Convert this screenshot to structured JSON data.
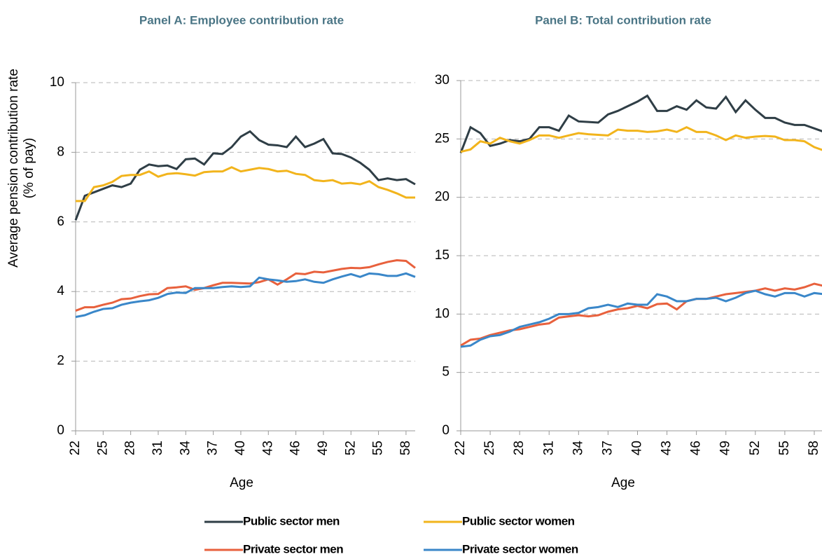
{
  "chart_data": [
    {
      "type": "line",
      "title": "Panel A: Employee contribution rate",
      "ylabel": [
        "Average pension contribution rate",
        "(% of pay)"
      ],
      "xlabel": "Age",
      "x": [
        22,
        23,
        24,
        25,
        26,
        27,
        28,
        29,
        30,
        31,
        32,
        33,
        34,
        35,
        36,
        37,
        38,
        39,
        40,
        41,
        42,
        43,
        44,
        45,
        46,
        47,
        48,
        49,
        50,
        51,
        52,
        53,
        54,
        55,
        56,
        57,
        58,
        59
      ],
      "xlim": [
        22,
        59
      ],
      "xticks": [
        22,
        25,
        28,
        31,
        34,
        37,
        40,
        43,
        46,
        49,
        52,
        55,
        58
      ],
      "ylim": [
        0,
        10
      ],
      "yticks": [
        0,
        2,
        4,
        6,
        8,
        10
      ],
      "grid": true,
      "series": [
        {
          "name": "Public sector men",
          "color": "#2f3e46",
          "values": [
            6.05,
            6.75,
            6.85,
            6.95,
            7.05,
            7.0,
            7.1,
            7.5,
            7.65,
            7.6,
            7.62,
            7.52,
            7.8,
            7.82,
            7.65,
            7.97,
            7.95,
            8.15,
            8.45,
            8.6,
            8.35,
            8.22,
            8.2,
            8.15,
            8.45,
            8.15,
            8.25,
            8.38,
            7.97,
            7.95,
            7.85,
            7.7,
            7.5,
            7.2,
            7.25,
            7.2,
            7.23,
            7.08
          ]
        },
        {
          "name": "Public sector women",
          "color": "#f2b41c",
          "values": [
            6.6,
            6.6,
            7.0,
            7.05,
            7.15,
            7.32,
            7.35,
            7.35,
            7.45,
            7.3,
            7.38,
            7.4,
            7.37,
            7.33,
            7.43,
            7.45,
            7.45,
            7.57,
            7.45,
            7.5,
            7.55,
            7.52,
            7.45,
            7.47,
            7.38,
            7.35,
            7.2,
            7.17,
            7.2,
            7.1,
            7.12,
            7.08,
            7.17,
            7.0,
            6.92,
            6.82,
            6.7,
            6.7
          ]
        },
        {
          "name": "Private sector men",
          "color": "#e8613d",
          "values": [
            3.45,
            3.55,
            3.55,
            3.62,
            3.68,
            3.78,
            3.8,
            3.87,
            3.92,
            3.93,
            4.1,
            4.12,
            4.15,
            4.05,
            4.1,
            4.18,
            4.25,
            4.25,
            4.24,
            4.23,
            4.27,
            4.35,
            4.2,
            4.35,
            4.52,
            4.5,
            4.57,
            4.55,
            4.6,
            4.65,
            4.68,
            4.67,
            4.7,
            4.78,
            4.85,
            4.9,
            4.88,
            4.68
          ]
        },
        {
          "name": "Private sector women",
          "color": "#3a87c9",
          "values": [
            3.27,
            3.32,
            3.42,
            3.5,
            3.52,
            3.62,
            3.68,
            3.72,
            3.75,
            3.82,
            3.93,
            3.97,
            3.96,
            4.1,
            4.1,
            4.1,
            4.13,
            4.15,
            4.13,
            4.15,
            4.4,
            4.35,
            4.32,
            4.28,
            4.3,
            4.35,
            4.28,
            4.25,
            4.35,
            4.43,
            4.5,
            4.42,
            4.52,
            4.5,
            4.45,
            4.45,
            4.52,
            4.42
          ]
        }
      ]
    },
    {
      "type": "line",
      "title": "Panel B: Total contribution rate",
      "xlabel": "Age",
      "x": [
        22,
        23,
        24,
        25,
        26,
        27,
        28,
        29,
        30,
        31,
        32,
        33,
        34,
        35,
        36,
        37,
        38,
        39,
        40,
        41,
        42,
        43,
        44,
        45,
        46,
        47,
        48,
        49,
        50,
        51,
        52,
        53,
        54,
        55,
        56,
        57,
        58,
        59
      ],
      "xlim": [
        22,
        59
      ],
      "xticks": [
        22,
        25,
        28,
        31,
        34,
        37,
        40,
        43,
        46,
        49,
        52,
        55,
        58
      ],
      "ylim": [
        0,
        30
      ],
      "yticks": [
        0,
        5,
        10,
        15,
        20,
        25,
        30
      ],
      "grid": true,
      "series": [
        {
          "name": "Public sector men",
          "color": "#2f3e46",
          "values": [
            23.8,
            26.0,
            25.5,
            24.4,
            24.6,
            24.9,
            24.8,
            25.0,
            26.0,
            26.0,
            25.7,
            27.0,
            26.5,
            26.45,
            26.4,
            27.1,
            27.4,
            27.8,
            28.2,
            28.7,
            27.4,
            27.4,
            27.8,
            27.5,
            28.3,
            27.7,
            27.6,
            28.6,
            27.3,
            28.3,
            27.5,
            26.8,
            26.8,
            26.4,
            26.2,
            26.2,
            25.9,
            25.6
          ]
        },
        {
          "name": "Public sector women",
          "color": "#f2b41c",
          "values": [
            23.9,
            24.1,
            24.8,
            24.6,
            25.1,
            24.8,
            24.6,
            24.9,
            25.3,
            25.3,
            25.1,
            25.3,
            25.5,
            25.4,
            25.35,
            25.3,
            25.8,
            25.7,
            25.7,
            25.6,
            25.65,
            25.8,
            25.6,
            26.0,
            25.6,
            25.6,
            25.3,
            24.9,
            25.3,
            25.1,
            25.2,
            25.25,
            25.2,
            24.9,
            24.9,
            24.8,
            24.3,
            24.0
          ]
        },
        {
          "name": "Private sector men",
          "color": "#e8613d",
          "values": [
            7.3,
            7.8,
            7.9,
            8.2,
            8.4,
            8.6,
            8.7,
            8.9,
            9.1,
            9.2,
            9.7,
            9.8,
            9.9,
            9.8,
            9.9,
            10.2,
            10.4,
            10.5,
            10.7,
            10.5,
            10.85,
            10.9,
            10.4,
            11.1,
            11.3,
            11.3,
            11.5,
            11.7,
            11.8,
            11.9,
            12.0,
            12.2,
            12.0,
            12.2,
            12.1,
            12.3,
            12.6,
            12.4
          ]
        },
        {
          "name": "Private sector women",
          "color": "#3a87c9",
          "values": [
            7.2,
            7.3,
            7.8,
            8.1,
            8.2,
            8.5,
            8.9,
            9.1,
            9.3,
            9.6,
            10.0,
            10.0,
            10.1,
            10.5,
            10.6,
            10.8,
            10.6,
            10.9,
            10.8,
            10.8,
            11.7,
            11.5,
            11.1,
            11.1,
            11.3,
            11.3,
            11.4,
            11.1,
            11.4,
            11.8,
            12.0,
            11.7,
            11.5,
            11.8,
            11.8,
            11.5,
            11.8,
            11.7
          ]
        }
      ]
    }
  ]
}
